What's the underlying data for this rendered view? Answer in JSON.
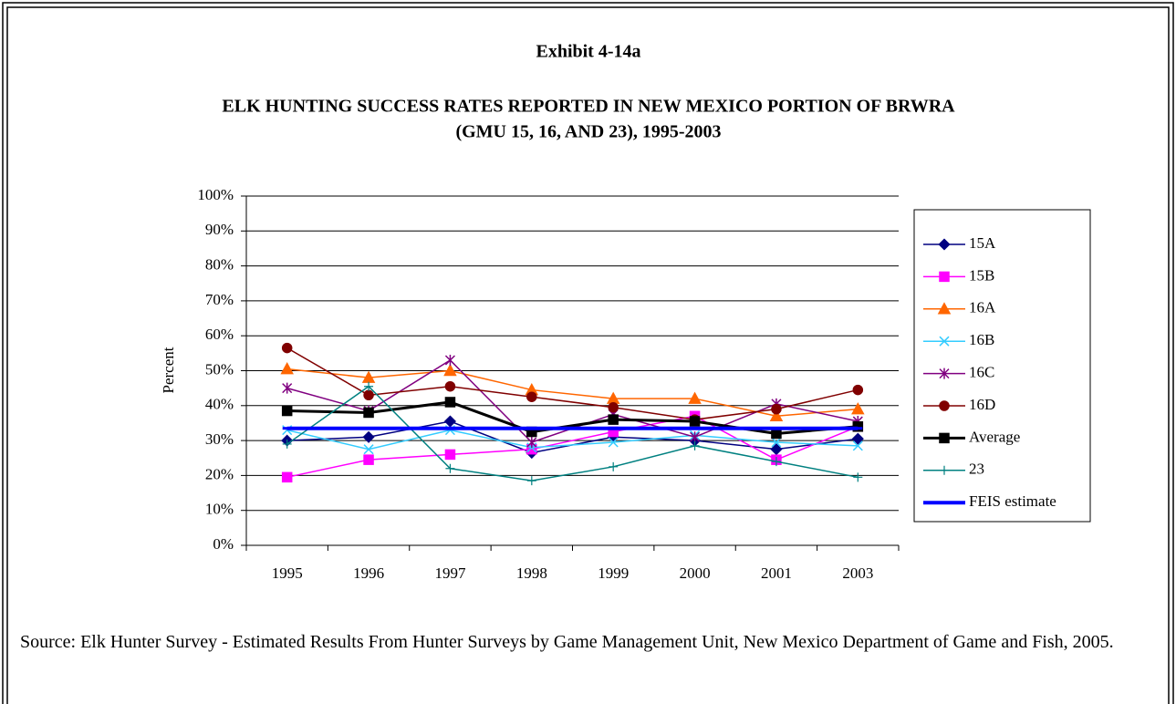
{
  "chart_data": {
    "type": "line",
    "exhibit": "Exhibit 4-14a",
    "title": [
      "ELK HUNTING SUCCESS RATES REPORTED IN NEW MEXICO PORTION OF BRWRA",
      "(GMU 15, 16, AND 23), 1995-2003"
    ],
    "y_label": "Percent",
    "categories": [
      "1995",
      "1996",
      "1997",
      "1998",
      "1999",
      "2000",
      "2001",
      "2003"
    ],
    "ylim": [
      0,
      100
    ],
    "yticks": [
      {
        "value": 0,
        "label": "0%"
      },
      {
        "value": 10,
        "label": "10%"
      },
      {
        "value": 20,
        "label": "20%"
      },
      {
        "value": 30,
        "label": "30%"
      },
      {
        "value": 40,
        "label": "40%"
      },
      {
        "value": 50,
        "label": "50%"
      },
      {
        "value": 60,
        "label": "60%"
      },
      {
        "value": 70,
        "label": "70%"
      },
      {
        "value": 80,
        "label": "80%"
      },
      {
        "value": 90,
        "label": "90%"
      },
      {
        "value": 100,
        "label": "100%"
      }
    ],
    "grid": true,
    "legend": "right",
    "series": [
      {
        "name": "15A",
        "color": "#000080",
        "marker": "diamond",
        "values": [
          30,
          31,
          35.5,
          26.5,
          31,
          30,
          27.5,
          30.5
        ]
      },
      {
        "name": "15B",
        "color": "#ff00ff",
        "marker": "square",
        "values": [
          19.5,
          24.5,
          26,
          27.5,
          32.5,
          37,
          24.5,
          34
        ]
      },
      {
        "name": "16A",
        "color": "#ff6600",
        "marker": "triangle",
        "values": [
          50.5,
          48,
          50,
          44.5,
          42,
          42,
          37,
          39
        ]
      },
      {
        "name": "16B",
        "color": "#33ccff",
        "marker": "x",
        "values": [
          33,
          27.5,
          33,
          28,
          29.5,
          31.5,
          29.5,
          28.5
        ]
      },
      {
        "name": "16C",
        "color": "#800080",
        "marker": "star",
        "values": [
          45,
          38.5,
          53,
          29.5,
          37.5,
          31,
          40.5,
          35.5
        ]
      },
      {
        "name": "16D",
        "color": "#800000",
        "marker": "circle",
        "values": [
          56.5,
          43,
          45.5,
          42.5,
          39.5,
          36,
          39,
          44.5
        ]
      },
      {
        "name": "Average",
        "color": "#000000",
        "marker": "square",
        "width": 3,
        "values": [
          38.5,
          38,
          41,
          32.5,
          36,
          35.5,
          32,
          34
        ]
      },
      {
        "name": "23",
        "color": "#008080",
        "marker": "plus",
        "values": [
          29,
          45.5,
          22,
          18.5,
          22.5,
          28.5,
          24,
          19.5
        ]
      },
      {
        "name": "FEIS estimate",
        "color": "#0000ff",
        "marker": "dash",
        "width": 4,
        "values": [
          33.5,
          33.5,
          33.5,
          33.5,
          33.5,
          33.5,
          33.5,
          33.5
        ]
      }
    ],
    "source": "Source: Elk Hunter Survey - Estimated Results From Hunter Surveys by Game Management Unit, New Mexico Department of Game and Fish, 2005."
  }
}
